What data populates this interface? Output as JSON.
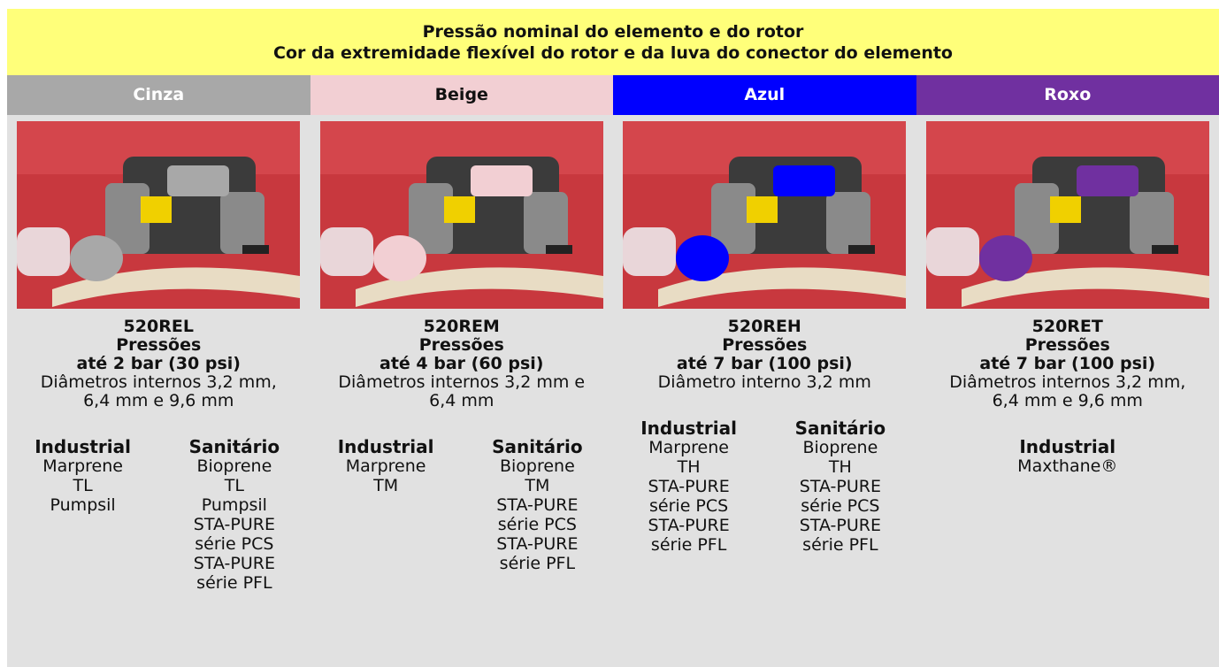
{
  "header": {
    "line1": "Pressão nominal do elemento e do rotor",
    "line2": "Cor da extremidade flexível do rotor e da luva do conector do elemento"
  },
  "columns": [
    {
      "color_name": "Cinza",
      "color": "#a8a8a8",
      "text_color": "#ffffff",
      "model": "520REL",
      "pressure_label": "Pressões",
      "pressure": "até 2 bar (30 psi)",
      "diameter": "Diâmetros internos 3,2 mm, 6,4 mm e 9,6 mm",
      "groups": [
        {
          "title": "Industrial",
          "items": [
            "Marprene",
            "TL",
            "Pumpsil"
          ]
        },
        {
          "title": "Sanitário",
          "items": [
            "Bioprene",
            "TL",
            "Pumpsil",
            "STA-PURE",
            "série PCS",
            "STA-PURE",
            "série PFL"
          ]
        }
      ]
    },
    {
      "color_name": "Beige",
      "color": "#f2cfd3",
      "text_color": "#111111",
      "model": "520REM",
      "pressure_label": "Pressões",
      "pressure": "até 4 bar (60 psi)",
      "diameter": "Diâmetros internos 3,2 mm e 6,4 mm",
      "groups": [
        {
          "title": "Industrial",
          "items": [
            "Marprene",
            "TM"
          ]
        },
        {
          "title": "Sanitário",
          "items": [
            "Bioprene",
            "TM",
            "STA-PURE",
            "série PCS",
            "STA-PURE",
            "série PFL"
          ]
        }
      ]
    },
    {
      "color_name": "Azul",
      "color": "#0000ff",
      "text_color": "#ffffff",
      "model": "520REH",
      "pressure_label": "Pressões",
      "pressure": "até 7 bar (100 psi)",
      "diameter": "Diâmetro interno 3,2 mm",
      "groups": [
        {
          "title": "Industrial",
          "items": [
            "Marprene",
            "TH",
            "STA-PURE",
            "série PCS",
            "STA-PURE",
            "série PFL"
          ]
        },
        {
          "title": "Sanitário",
          "items": [
            "Bioprene",
            "TH",
            "STA-PURE",
            "série PCS",
            "STA-PURE",
            "série PFL"
          ]
        }
      ]
    },
    {
      "color_name": "Roxo",
      "color": "#7030a0",
      "text_color": "#ffffff",
      "model": "520RET",
      "pressure_label": "Pressões",
      "pressure": "até 7 bar (100 psi)",
      "diameter": "Diâmetros internos 3,2 mm, 6,4 mm e 9,6 mm",
      "groups": [
        {
          "title": "Industrial",
          "items": [
            "Maxthane®"
          ]
        }
      ]
    }
  ]
}
